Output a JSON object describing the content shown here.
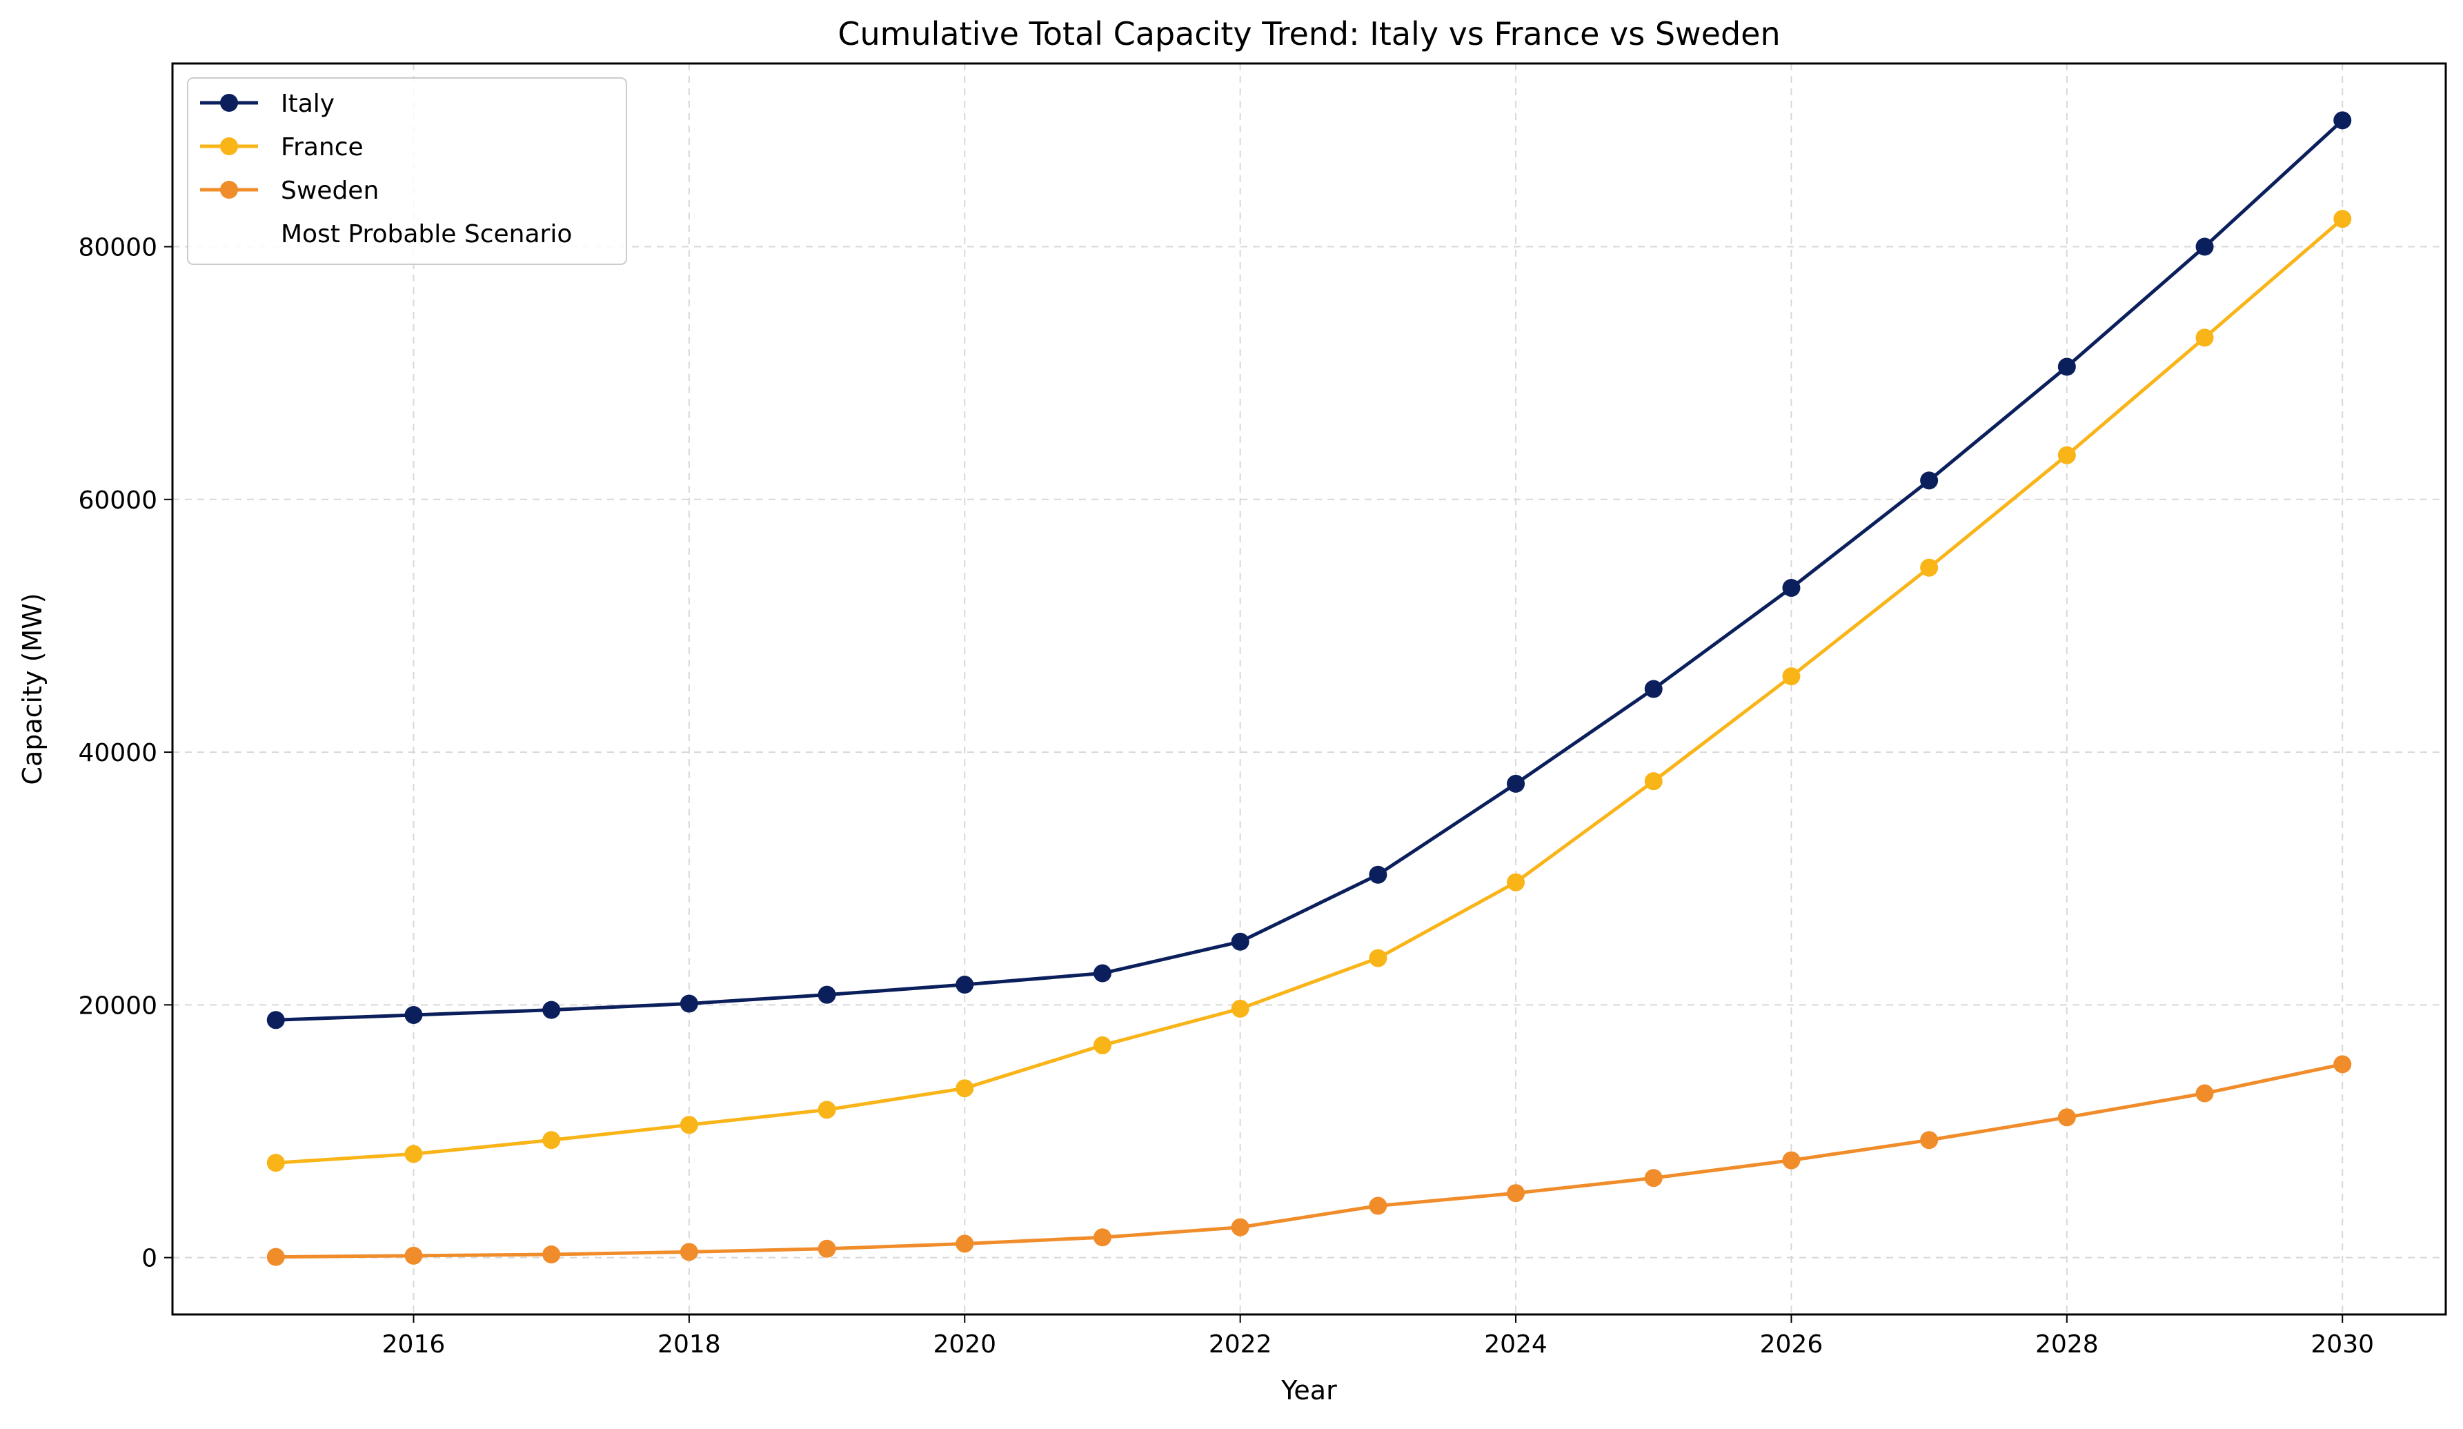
{
  "chart_data": {
    "type": "line",
    "title": "Cumulative Total Capacity Trend: Italy vs France vs Sweden",
    "xlabel": "Year",
    "ylabel": "Capacity (MW)",
    "x": [
      2015,
      2016,
      2017,
      2018,
      2019,
      2020,
      2021,
      2022,
      2023,
      2024,
      2025,
      2026,
      2027,
      2028,
      2029,
      2030
    ],
    "xlim": [
      2014.25,
      2030.75
    ],
    "ylim": [
      -4500,
      94500
    ],
    "xticks": [
      2016,
      2018,
      2020,
      2022,
      2024,
      2026,
      2028,
      2030
    ],
    "yticks": [
      0,
      20000,
      40000,
      60000,
      80000
    ],
    "grid": true,
    "legend_position": "upper-left",
    "series": [
      {
        "name": "Italy",
        "color": "#0b1f5c",
        "marker": "circle",
        "values": [
          18800,
          19200,
          19600,
          20100,
          20800,
          21600,
          22500,
          25000,
          30300,
          37500,
          45000,
          53000,
          61500,
          70500,
          80000,
          90000
        ]
      },
      {
        "name": "France",
        "color": "#f9b418",
        "marker": "circle",
        "values": [
          7500,
          8200,
          9300,
          10500,
          11700,
          13400,
          16800,
          19700,
          23700,
          29700,
          37700,
          46000,
          54600,
          63500,
          72800,
          82200
        ]
      },
      {
        "name": "Sweden",
        "color": "#f08c2a",
        "marker": "circle",
        "values": [
          50,
          150,
          250,
          450,
          700,
          1100,
          1600,
          2400,
          4100,
          5100,
          6300,
          7700,
          9300,
          11100,
          13000,
          15300
        ]
      }
    ],
    "extra_legend_entry": "Most Probable Scenario"
  }
}
